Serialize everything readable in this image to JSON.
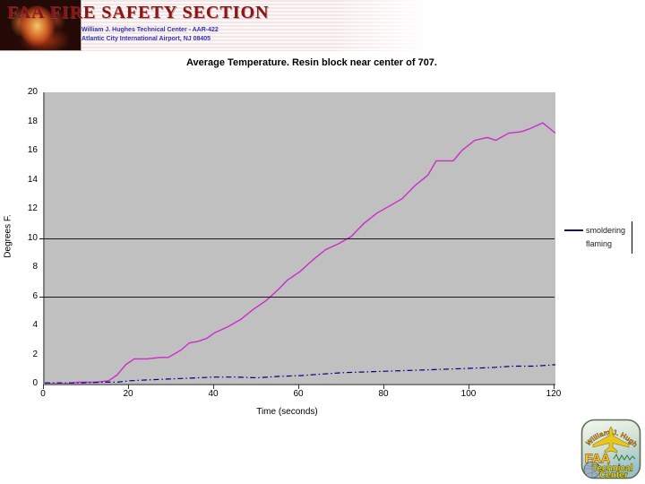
{
  "header": {
    "title": "FAA FIRE SAFETY SECTION",
    "subtitle1": "William J. Hughes Technical Center  -  AAR-422",
    "subtitle2": "Atlantic City International Airport, NJ 08405",
    "title_color": "#8b1414",
    "subtitle_color": "#3434b4"
  },
  "chart_data": {
    "type": "line",
    "title": "Average Temperature. Resin block near center of 707.",
    "xlabel": "Time (seconds)",
    "ylabel": "Degrees F.",
    "xlim": [
      0,
      120
    ],
    "ylim": [
      0,
      20
    ],
    "x_ticks": [
      0,
      20,
      40,
      60,
      80,
      100,
      120
    ],
    "y_ticks": [
      20,
      18,
      16,
      14,
      12,
      10,
      8,
      6,
      4,
      2,
      0
    ],
    "gridlines_y": [
      10,
      6
    ],
    "plot_bg": "#c0c0c0",
    "grid": "partial",
    "legend": {
      "position": "right",
      "entries": [
        {
          "label": "smoldering",
          "color": "#000080",
          "style": "dash-dot"
        },
        {
          "label": "flaming",
          "color": "#cc2ccc",
          "style": "solid"
        }
      ]
    },
    "series": [
      {
        "name": "flaming",
        "color": "#cc2ccc",
        "dash": "",
        "width": 1.4,
        "x": [
          0,
          5,
          8,
          12,
          15,
          17,
          19,
          21,
          24,
          27,
          29,
          32,
          34,
          36,
          38,
          40,
          43,
          46,
          49,
          52,
          55,
          57,
          60,
          63,
          66,
          69,
          72,
          75,
          78,
          81,
          84,
          87,
          90,
          92,
          96,
          98,
          101,
          104,
          106,
          109,
          112,
          114,
          117,
          120
        ],
        "y": [
          0,
          0,
          0.1,
          0.1,
          0.2,
          0.6,
          1.3,
          1.7,
          1.7,
          1.8,
          1.8,
          2.3,
          2.8,
          2.9,
          3.1,
          3.5,
          3.9,
          4.4,
          5.1,
          5.7,
          6.5,
          7.1,
          7.7,
          8.5,
          9.2,
          9.6,
          10.1,
          11.0,
          11.7,
          12.2,
          12.7,
          13.6,
          14.3,
          15.3,
          15.3,
          16.0,
          16.7,
          16.9,
          16.7,
          17.2,
          17.3,
          17.5,
          17.9,
          17.2
        ]
      },
      {
        "name": "smoldering",
        "color": "#000080",
        "dash": "6 3 1.5 3",
        "width": 1.2,
        "x": [
          0,
          3,
          8,
          14,
          17,
          20,
          24,
          28,
          32,
          36,
          40,
          45,
          50,
          55,
          60,
          65,
          70,
          75,
          80,
          85,
          90,
          95,
          100,
          105,
          110,
          115,
          120
        ],
        "y": [
          0.05,
          0.05,
          0.05,
          0.1,
          0.1,
          0.2,
          0.25,
          0.3,
          0.35,
          0.4,
          0.45,
          0.45,
          0.4,
          0.5,
          0.55,
          0.65,
          0.75,
          0.8,
          0.85,
          0.9,
          0.95,
          1.0,
          1.05,
          1.1,
          1.2,
          1.2,
          1.3
        ]
      }
    ]
  },
  "logo": {
    "arc_text": "William J. Hughes",
    "faa": "FAA",
    "line2": "Technical",
    "line3": "Center"
  }
}
